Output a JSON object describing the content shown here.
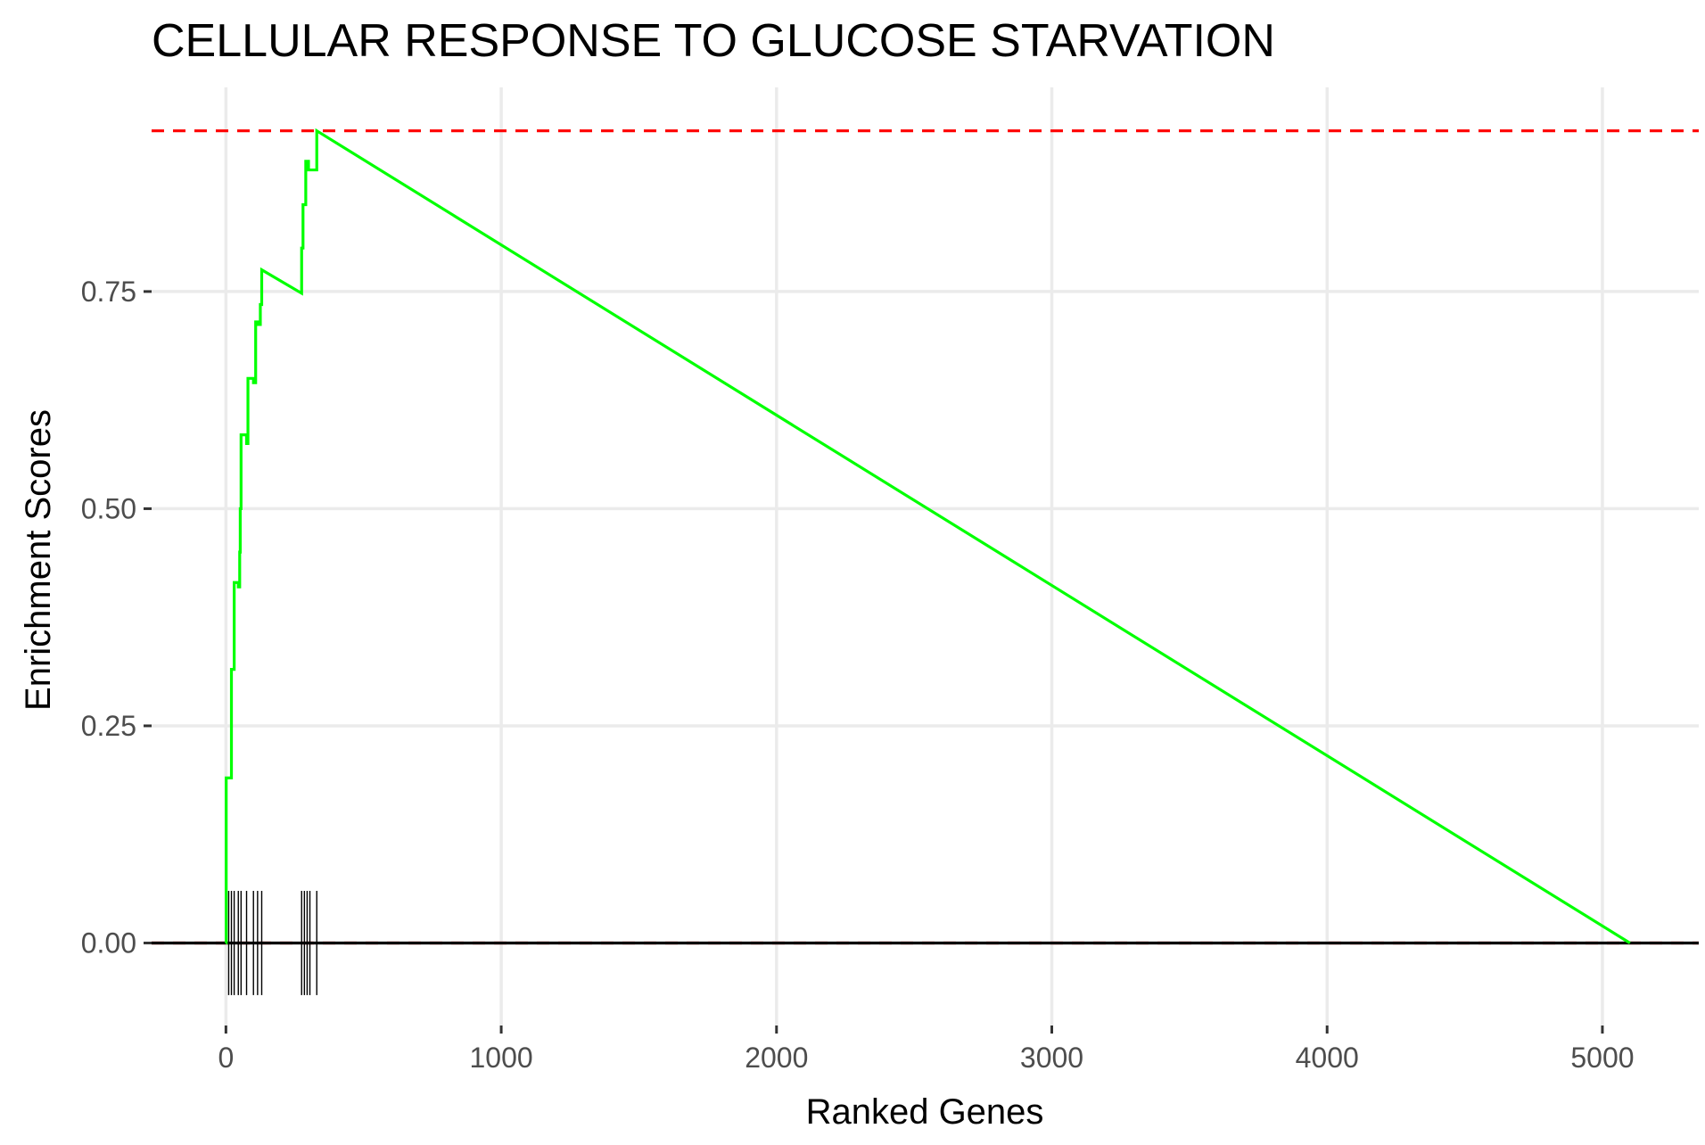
{
  "chart_data": {
    "type": "line",
    "title": "CELLULAR RESPONSE TO GLUCOSE STARVATION",
    "xlabel": "Ranked Genes",
    "ylabel": "Enrichment Scores",
    "xlim": [
      -270,
      5350
    ],
    "ylim": [
      -0.095,
      0.985
    ],
    "x_ticks": [
      0,
      1000,
      2000,
      3000,
      4000,
      5000
    ],
    "x_tick_labels": [
      "0",
      "1000",
      "2000",
      "3000",
      "4000",
      "5000"
    ],
    "y_ticks": [
      0,
      0.25,
      0.5,
      0.75
    ],
    "y_tick_labels": [
      "0.00",
      "0.25",
      "0.50",
      "0.75"
    ],
    "grid": true,
    "legend": "none",
    "series": [
      {
        "color": "#00ff00",
        "x": [
          0,
          1,
          1,
          20,
          20,
          30,
          30,
          45,
          45,
          50,
          50,
          52,
          52,
          55,
          55,
          75,
          75,
          80,
          80,
          100,
          100,
          108,
          108,
          115,
          115,
          125,
          125,
          130,
          130,
          275,
          275,
          280,
          280,
          290,
          290,
          300,
          300,
          330,
          330,
          5100
        ],
        "y": [
          0,
          0,
          0.19,
          0.19,
          0.315,
          0.315,
          0.415,
          0.415,
          0.41,
          0.41,
          0.45,
          0.45,
          0.5,
          0.5,
          0.585,
          0.585,
          0.575,
          0.575,
          0.65,
          0.65,
          0.645,
          0.645,
          0.715,
          0.715,
          0.712,
          0.712,
          0.735,
          0.735,
          0.775,
          0.748,
          0.8,
          0.8,
          0.85,
          0.85,
          0.9,
          0.9,
          0.89,
          0.89,
          0.935,
          0.0
        ]
      }
    ],
    "reference_lines": [
      {
        "axis": "y",
        "value": 0.935,
        "color": "#ff0000",
        "style": "dashed"
      },
      {
        "axis": "y",
        "value": 0.0,
        "color": "#ff0000",
        "style": "dashed"
      },
      {
        "axis": "y",
        "value": 0.0,
        "color": "#000000",
        "style": "solid"
      }
    ],
    "hit_positions": [
      10,
      20,
      30,
      45,
      55,
      75,
      100,
      115,
      130,
      275,
      285,
      295,
      305,
      330
    ],
    "hit_range": [
      -0.06,
      0.06
    ]
  }
}
